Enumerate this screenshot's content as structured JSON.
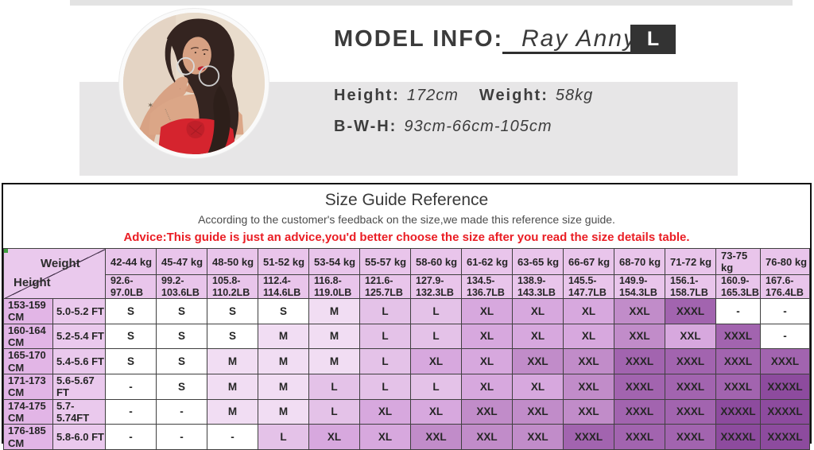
{
  "model_info": {
    "label": "MODEL INFO:",
    "name": "Ray Anny",
    "size_badge": "L",
    "height_label": "Height:",
    "height_value": "172cm",
    "weight_label": "Weight:",
    "weight_value": "58kg",
    "bwh_label": "B-W-H:",
    "bwh_value": "93cm-66cm-105cm"
  },
  "size_guide": {
    "title": "Size Guide Reference",
    "subtitle": "According to the customer's feedback on the size,we made this reference size guide.",
    "advice": "Advice:This guide is just an advice,you'd better choose the size after you read the size details table.",
    "corner_weight": "Weight",
    "corner_height": "Height",
    "weight_columns_kg": [
      "42-44 kg",
      "45-47 kg",
      "48-50 kg",
      "51-52 kg",
      "53-54 kg",
      "55-57 kg",
      "58-60 kg",
      "61-62 kg",
      "63-65 kg",
      "66-67 kg",
      "68-70 kg",
      "71-72 kg",
      "73-75 kg",
      "76-80 kg"
    ],
    "weight_columns_lb": [
      "92.6-\n97.0LB",
      "99.2-\n103.6LB",
      "105.8-\n110.2LB",
      "112.4-\n114.6LB",
      "116.8-\n119.0LB",
      "121.6-\n125.7LB",
      "127.9-\n132.3LB",
      "134.5-\n136.7LB",
      "138.9-\n143.3LB",
      "145.5-\n147.7LB",
      "149.9-\n154.3LB",
      "156.1-\n158.7LB",
      "160.9-\n165.3LB",
      "167.6-\n176.4LB"
    ],
    "shade_colors": {
      "0": "#ffffff",
      "1": "#f1ddf3",
      "2": "#e4c2e8",
      "3": "#d7a8de",
      "4": "#c18cc9",
      "5": "#a264af",
      "6": "#8d4b9e"
    },
    "rows": [
      {
        "height_cm": "153-159\nCM",
        "height_ft": "5.0-5.2 FT",
        "sizes": [
          "S",
          "S",
          "S",
          "S",
          "M",
          "L",
          "L",
          "XL",
          "XL",
          "XL",
          "XXL",
          "XXXL",
          "-",
          "-"
        ],
        "shades": [
          0,
          0,
          0,
          0,
          1,
          2,
          2,
          3,
          3,
          3,
          4,
          5,
          0,
          0
        ]
      },
      {
        "height_cm": "160-164\nCM",
        "height_ft": "5.2-5.4 FT",
        "sizes": [
          "S",
          "S",
          "S",
          "M",
          "M",
          "L",
          "L",
          "XL",
          "XL",
          "XL",
          "XXL",
          "XXL",
          "XXXL",
          "-"
        ],
        "shades": [
          0,
          0,
          0,
          1,
          1,
          2,
          2,
          3,
          3,
          3,
          4,
          3,
          5,
          0
        ]
      },
      {
        "height_cm": "165-170\nCM",
        "height_ft": "5.4-5.6 FT",
        "sizes": [
          "S",
          "S",
          "M",
          "M",
          "M",
          "L",
          "XL",
          "XL",
          "XXL",
          "XXL",
          "XXXL",
          "XXXL",
          "XXXL",
          "XXXL"
        ],
        "shades": [
          0,
          0,
          1,
          1,
          1,
          2,
          3,
          3,
          4,
          4,
          5,
          5,
          5,
          5
        ]
      },
      {
        "height_cm": "171-173\nCM",
        "height_ft": "5.6-5.67 FT",
        "sizes": [
          "-",
          "S",
          "M",
          "M",
          "L",
          "L",
          "L",
          "XL",
          "XL",
          "XXL",
          "XXXL",
          "XXXL",
          "XXXL",
          "XXXXL"
        ],
        "shades": [
          0,
          0,
          1,
          1,
          2,
          2,
          2,
          3,
          3,
          4,
          5,
          5,
          5,
          6
        ]
      },
      {
        "height_cm": "174-175\nCM",
        "height_ft": "5.7-5.74FT",
        "sizes": [
          "-",
          "-",
          "M",
          "M",
          "L",
          "XL",
          "XL",
          "XXL",
          "XXL",
          "XXL",
          "XXXL",
          "XXXL",
          "XXXXL",
          "XXXXL"
        ],
        "shades": [
          0,
          0,
          1,
          1,
          2,
          3,
          3,
          4,
          4,
          4,
          5,
          5,
          6,
          6
        ]
      },
      {
        "height_cm": "176-185\nCM",
        "height_ft": "5.8-6.0 FT",
        "sizes": [
          "-",
          "-",
          "-",
          "L",
          "XL",
          "XL",
          "XXL",
          "XXL",
          "XXL",
          "XXXL",
          "XXXL",
          "XXXL",
          "XXXXL",
          "XXXXL"
        ],
        "shades": [
          0,
          0,
          0,
          2,
          3,
          3,
          4,
          4,
          4,
          5,
          5,
          5,
          6,
          6
        ]
      }
    ]
  }
}
